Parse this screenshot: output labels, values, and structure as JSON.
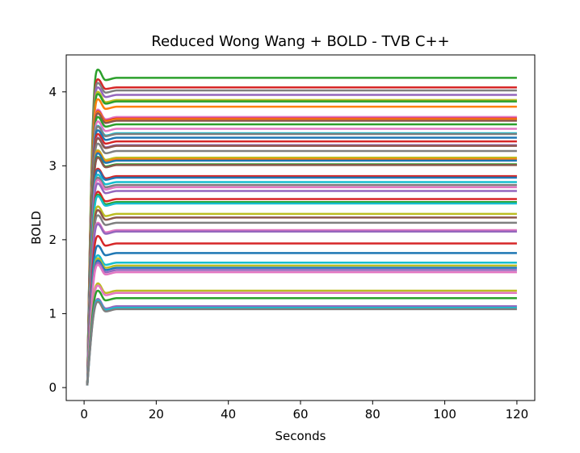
{
  "chart_data": {
    "type": "line",
    "title": "Reduced Wong Wang + BOLD - TVB C++",
    "xlabel": "Seconds",
    "ylabel": "BOLD",
    "xlim": [
      -4.95,
      124.95
    ],
    "ylim": [
      -0.175,
      4.5
    ],
    "xticks": [
      0,
      20,
      40,
      60,
      80,
      100,
      120
    ],
    "yticks": [
      0,
      1,
      2,
      3,
      4
    ],
    "grid": false,
    "legend": false,
    "x_start": 0.9,
    "x_end": 120,
    "series": [
      {
        "color": "#2ca02c",
        "values": [
          0.03,
          4.3,
          4.16,
          4.19,
          4.19
        ]
      },
      {
        "color": "#d62728",
        "values": [
          0.03,
          4.17,
          4.04,
          4.06,
          4.06
        ]
      },
      {
        "color": "#7f7f7f",
        "values": [
          0.03,
          4.12,
          3.99,
          4.02,
          4.02
        ]
      },
      {
        "color": "#9467bd",
        "values": [
          0.03,
          4.06,
          3.93,
          3.96,
          3.96
        ]
      },
      {
        "color": "#bcbd22",
        "values": [
          0.03,
          4.0,
          3.86,
          3.89,
          3.89
        ]
      },
      {
        "color": "#2ca02c",
        "values": [
          0.03,
          3.97,
          3.84,
          3.87,
          3.87
        ]
      },
      {
        "color": "#ff7f0e",
        "values": [
          0.03,
          3.9,
          3.77,
          3.8,
          3.8
        ]
      },
      {
        "color": "#e377c2",
        "values": [
          0.03,
          3.76,
          3.63,
          3.66,
          3.66
        ]
      },
      {
        "color": "#d62728",
        "values": [
          0.03,
          3.74,
          3.61,
          3.64,
          3.64
        ]
      },
      {
        "color": "#ff7f0e",
        "values": [
          0.03,
          3.73,
          3.6,
          3.63,
          3.63
        ]
      },
      {
        "color": "#8c564b",
        "values": [
          0.03,
          3.71,
          3.58,
          3.61,
          3.61
        ]
      },
      {
        "color": "#2ca02c",
        "values": [
          0.03,
          3.66,
          3.53,
          3.56,
          3.56
        ]
      },
      {
        "color": "#e377c2",
        "values": [
          0.03,
          3.6,
          3.47,
          3.5,
          3.5
        ]
      },
      {
        "color": "#17becf",
        "values": [
          0.03,
          3.54,
          3.41,
          3.44,
          3.44
        ]
      },
      {
        "color": "#7f7f7f",
        "values": [
          0.03,
          3.53,
          3.4,
          3.43,
          3.43
        ]
      },
      {
        "color": "#1f77b4",
        "values": [
          0.03,
          3.48,
          3.35,
          3.38,
          3.38
        ]
      },
      {
        "color": "#d62728",
        "values": [
          0.03,
          3.43,
          3.3,
          3.33,
          3.33
        ]
      },
      {
        "color": "#9467bd",
        "values": [
          0.03,
          3.38,
          3.25,
          3.28,
          3.28
        ]
      },
      {
        "color": "#8c564b",
        "values": [
          0.03,
          3.37,
          3.24,
          3.27,
          3.27
        ]
      },
      {
        "color": "#7f7f7f",
        "values": [
          0.03,
          3.3,
          3.17,
          3.2,
          3.2
        ]
      },
      {
        "color": "#bcbd22",
        "values": [
          0.03,
          3.21,
          3.08,
          3.11,
          3.11
        ]
      },
      {
        "color": "#ff7f0e",
        "values": [
          0.03,
          3.19,
          3.06,
          3.09,
          3.09
        ]
      },
      {
        "color": "#1f77b4",
        "values": [
          0.03,
          3.17,
          3.04,
          3.07,
          3.07
        ]
      },
      {
        "color": "#2ca02c",
        "values": [
          0.03,
          3.12,
          2.99,
          3.02,
          3.02
        ]
      },
      {
        "color": "#8c564b",
        "values": [
          0.03,
          3.11,
          2.98,
          3.01,
          3.01
        ]
      },
      {
        "color": "#d62728",
        "values": [
          0.03,
          2.96,
          2.83,
          2.86,
          2.86
        ]
      },
      {
        "color": "#1f77b4",
        "values": [
          0.03,
          2.94,
          2.81,
          2.84,
          2.84
        ]
      },
      {
        "color": "#17becf",
        "values": [
          0.03,
          2.88,
          2.75,
          2.78,
          2.78
        ]
      },
      {
        "color": "#7f7f7f",
        "values": [
          0.03,
          2.84,
          2.71,
          2.74,
          2.74
        ]
      },
      {
        "color": "#e377c2",
        "values": [
          0.03,
          2.81,
          2.68,
          2.71,
          2.71
        ]
      },
      {
        "color": "#9467bd",
        "values": [
          0.03,
          2.76,
          2.63,
          2.66,
          2.66
        ]
      },
      {
        "color": "#d62728",
        "values": [
          0.03,
          2.65,
          2.52,
          2.55,
          2.55
        ]
      },
      {
        "color": "#2ca02c",
        "values": [
          0.03,
          2.61,
          2.48,
          2.51,
          2.51
        ]
      },
      {
        "color": "#17becf",
        "values": [
          0.03,
          2.59,
          2.46,
          2.49,
          2.49
        ]
      },
      {
        "color": "#bcbd22",
        "values": [
          0.03,
          2.45,
          2.32,
          2.35,
          2.35
        ]
      },
      {
        "color": "#8c564b",
        "values": [
          0.03,
          2.4,
          2.27,
          2.3,
          2.3
        ]
      },
      {
        "color": "#7f7f7f",
        "values": [
          0.03,
          2.33,
          2.2,
          2.23,
          2.23
        ]
      },
      {
        "color": "#e377c2",
        "values": [
          0.03,
          2.23,
          2.1,
          2.13,
          2.13
        ]
      },
      {
        "color": "#9467bd",
        "values": [
          0.03,
          2.21,
          2.08,
          2.11,
          2.11
        ]
      },
      {
        "color": "#d62728",
        "values": [
          0.03,
          2.05,
          1.92,
          1.95,
          1.95
        ]
      },
      {
        "color": "#1f77b4",
        "values": [
          0.03,
          1.92,
          1.79,
          1.82,
          1.82
        ]
      },
      {
        "color": "#17becf",
        "values": [
          0.03,
          1.79,
          1.66,
          1.69,
          1.69
        ]
      },
      {
        "color": "#bcbd22",
        "values": [
          0.03,
          1.75,
          1.62,
          1.65,
          1.65
        ]
      },
      {
        "color": "#1f77b4",
        "values": [
          0.03,
          1.72,
          1.59,
          1.62,
          1.62
        ]
      },
      {
        "color": "#9467bd",
        "values": [
          0.03,
          1.69,
          1.56,
          1.59,
          1.59
        ]
      },
      {
        "color": "#e377c2",
        "values": [
          0.03,
          1.66,
          1.53,
          1.56,
          1.56
        ]
      },
      {
        "color": "#bcbd22",
        "values": [
          0.03,
          1.41,
          1.28,
          1.31,
          1.31
        ]
      },
      {
        "color": "#e377c2",
        "values": [
          0.03,
          1.38,
          1.25,
          1.28,
          1.28
        ]
      },
      {
        "color": "#2ca02c",
        "values": [
          0.03,
          1.31,
          1.18,
          1.21,
          1.21
        ]
      },
      {
        "color": "#9467bd",
        "values": [
          0.03,
          1.2,
          1.07,
          1.1,
          1.1
        ]
      },
      {
        "color": "#17becf",
        "values": [
          0.03,
          1.18,
          1.05,
          1.08,
          1.08
        ]
      },
      {
        "color": "#7f7f7f",
        "values": [
          0.03,
          1.16,
          1.03,
          1.06,
          1.06
        ]
      }
    ],
    "series_x": [
      0.9,
      3.8,
      6.0,
      9.0,
      120
    ]
  }
}
